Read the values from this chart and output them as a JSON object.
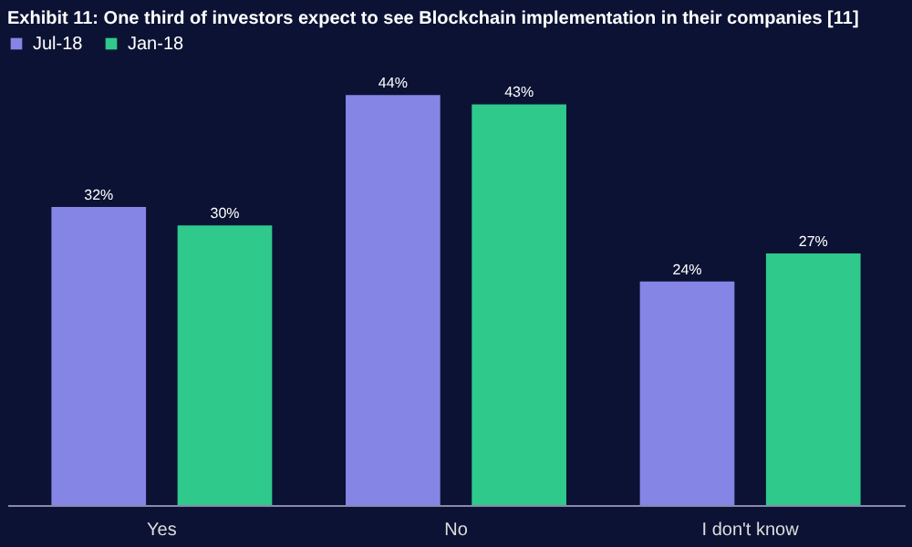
{
  "chart_data": {
    "type": "bar",
    "title": "Exhibit 11: One third of investors expect to see Blockchain implementation in their companies [11]",
    "categories": [
      "Yes",
      "No",
      "I don't know"
    ],
    "series": [
      {
        "name": "Jul-18",
        "color": "#8585e6",
        "values": [
          32,
          44,
          24
        ],
        "value_labels": [
          "32%",
          "44%",
          "24%"
        ]
      },
      {
        "name": "Jan-18",
        "color": "#2fc98c",
        "values": [
          30,
          43,
          27
        ],
        "value_labels": [
          "30%",
          "43%",
          "27%"
        ]
      }
    ],
    "legend": "top",
    "grid": false
  }
}
